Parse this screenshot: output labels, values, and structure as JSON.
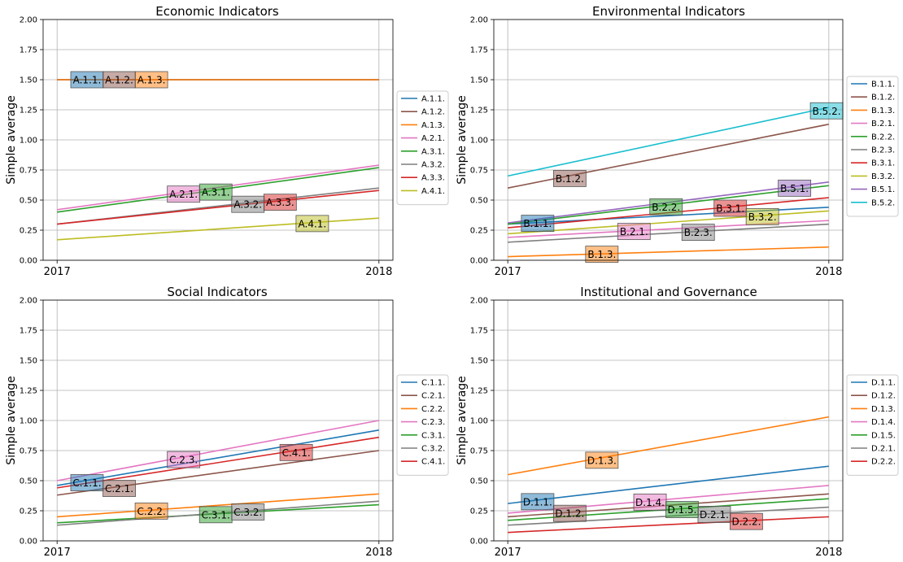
{
  "chart_data": [
    {
      "type": "line",
      "title": "Economic Indicators",
      "xlabel": "",
      "ylabel": "Simple average",
      "x": [
        "2017",
        "2018"
      ],
      "ylim": [
        0,
        2
      ],
      "yticks": [
        "0.00",
        "0.25",
        "0.50",
        "0.75",
        "1.00",
        "1.25",
        "1.50",
        "1.75",
        "2.00"
      ],
      "grid": true,
      "legend": "right",
      "series": [
        {
          "name": "A.1.1.",
          "color": "#1f77b4",
          "values": [
            1.5,
            1.5
          ],
          "label_pos": 0.05
        },
        {
          "name": "A.1.2.",
          "color": "#8c564b",
          "values": [
            1.5,
            1.5
          ],
          "label_pos": 0.15
        },
        {
          "name": "A.1.3.",
          "color": "#ff7f0e",
          "values": [
            1.5,
            1.5
          ],
          "label_pos": 0.25
        },
        {
          "name": "A.2.1.",
          "color": "#e377c2",
          "values": [
            0.42,
            0.79
          ],
          "label_pos": 0.35
        },
        {
          "name": "A.3.1.",
          "color": "#2ca02c",
          "values": [
            0.4,
            0.77
          ],
          "label_pos": 0.45
        },
        {
          "name": "A.3.2.",
          "color": "#7f7f7f",
          "values": [
            0.3,
            0.6
          ],
          "label_pos": 0.55
        },
        {
          "name": "A.3.3.",
          "color": "#d62728",
          "values": [
            0.3,
            0.58
          ],
          "label_pos": 0.65
        },
        {
          "name": "A.4.1.",
          "color": "#bcbd22",
          "values": [
            0.17,
            0.35
          ],
          "label_pos": 0.75
        }
      ]
    },
    {
      "type": "line",
      "title": "Environmental Indicators",
      "xlabel": "",
      "ylabel": "Simple average",
      "x": [
        "2017",
        "2018"
      ],
      "ylim": [
        0,
        2
      ],
      "yticks": [
        "0.00",
        "0.25",
        "0.50",
        "0.75",
        "1.00",
        "1.25",
        "1.50",
        "1.75",
        "2.00"
      ],
      "grid": true,
      "legend": "right",
      "series": [
        {
          "name": "B.1.1.",
          "color": "#1f77b4",
          "values": [
            0.3,
            0.44
          ],
          "label_pos": 0.05
        },
        {
          "name": "B.1.2.",
          "color": "#8c564b",
          "values": [
            0.6,
            1.13
          ],
          "label_pos": 0.15
        },
        {
          "name": "B.1.3.",
          "color": "#ff7f0e",
          "values": [
            0.03,
            0.11
          ],
          "label_pos": 0.25
        },
        {
          "name": "B.2.1.",
          "color": "#e377c2",
          "values": [
            0.19,
            0.33
          ],
          "label_pos": 0.35
        },
        {
          "name": "B.2.2.",
          "color": "#2ca02c",
          "values": [
            0.3,
            0.62
          ],
          "label_pos": 0.45
        },
        {
          "name": "B.2.3.",
          "color": "#7f7f7f",
          "values": [
            0.15,
            0.3
          ],
          "label_pos": 0.55
        },
        {
          "name": "B.3.1.",
          "color": "#d62728",
          "values": [
            0.27,
            0.52
          ],
          "label_pos": 0.65
        },
        {
          "name": "B.3.2.",
          "color": "#bcbd22",
          "values": [
            0.22,
            0.41
          ],
          "label_pos": 0.75
        },
        {
          "name": "B.5.1.",
          "color": "#9467bd",
          "values": [
            0.31,
            0.65
          ],
          "label_pos": 0.85
        },
        {
          "name": "B.5.2.",
          "color": "#17becf",
          "values": [
            0.7,
            1.27
          ],
          "label_pos": 0.95
        }
      ]
    },
    {
      "type": "line",
      "title": "Social Indicators",
      "xlabel": "",
      "ylabel": "Simple average",
      "x": [
        "2017",
        "2018"
      ],
      "ylim": [
        0,
        2
      ],
      "yticks": [
        "0.00",
        "0.25",
        "0.50",
        "0.75",
        "1.00",
        "1.25",
        "1.50",
        "1.75",
        "2.00"
      ],
      "grid": true,
      "legend": "right",
      "series": [
        {
          "name": "C.1.1.",
          "color": "#1f77b4",
          "values": [
            0.46,
            0.92
          ],
          "label_pos": 0.05
        },
        {
          "name": "C.2.1.",
          "color": "#8c564b",
          "values": [
            0.38,
            0.75
          ],
          "label_pos": 0.15
        },
        {
          "name": "C.2.2.",
          "color": "#ff7f0e",
          "values": [
            0.2,
            0.39
          ],
          "label_pos": 0.25
        },
        {
          "name": "C.2.3.",
          "color": "#e377c2",
          "values": [
            0.5,
            1.0
          ],
          "label_pos": 0.35
        },
        {
          "name": "C.3.1.",
          "color": "#2ca02c",
          "values": [
            0.15,
            0.3
          ],
          "label_pos": 0.45
        },
        {
          "name": "C.3.2.",
          "color": "#7f7f7f",
          "values": [
            0.13,
            0.33
          ],
          "label_pos": 0.55
        },
        {
          "name": "C.4.1.",
          "color": "#d62728",
          "values": [
            0.44,
            0.86
          ],
          "label_pos": 0.7
        }
      ]
    },
    {
      "type": "line",
      "title": "Institutional and Governance",
      "xlabel": "",
      "ylabel": "Simple average",
      "x": [
        "2017",
        "2018"
      ],
      "ylim": [
        0,
        2
      ],
      "yticks": [
        "0.00",
        "0.25",
        "0.50",
        "0.75",
        "1.00",
        "1.25",
        "1.50",
        "1.75",
        "2.00"
      ],
      "grid": true,
      "legend": "right",
      "series": [
        {
          "name": "D.1.1.",
          "color": "#1f77b4",
          "values": [
            0.31,
            0.62
          ],
          "label_pos": 0.05
        },
        {
          "name": "D.1.2.",
          "color": "#8c564b",
          "values": [
            0.2,
            0.39
          ],
          "label_pos": 0.15
        },
        {
          "name": "D.1.3.",
          "color": "#ff7f0e",
          "values": [
            0.55,
            1.03
          ],
          "label_pos": 0.25
        },
        {
          "name": "D.1.4.",
          "color": "#e377c2",
          "values": [
            0.23,
            0.46
          ],
          "label_pos": 0.4
        },
        {
          "name": "D.1.5.",
          "color": "#2ca02c",
          "values": [
            0.17,
            0.35
          ],
          "label_pos": 0.5
        },
        {
          "name": "D.2.1.",
          "color": "#7f7f7f",
          "values": [
            0.13,
            0.28
          ],
          "label_pos": 0.6
        },
        {
          "name": "D.2.2.",
          "color": "#d62728",
          "values": [
            0.07,
            0.2
          ],
          "label_pos": 0.7
        }
      ]
    }
  ]
}
